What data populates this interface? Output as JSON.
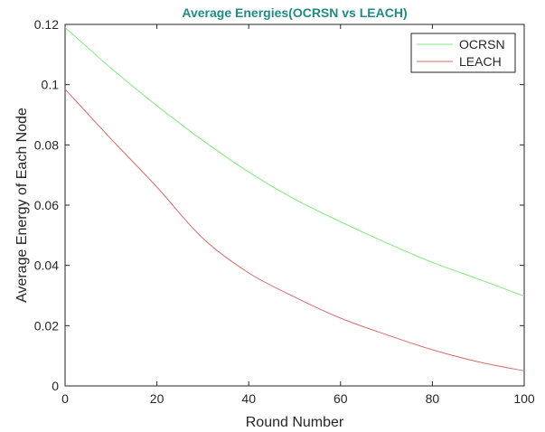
{
  "chart_data": {
    "type": "line",
    "title": "Average Energies(OCRSN vs LEACH)",
    "xlabel": "Round Number",
    "ylabel": "Average Energy of Each Node",
    "xlim": [
      0,
      100
    ],
    "ylim": [
      0,
      0.12
    ],
    "x_ticks": [
      "0",
      "20",
      "40",
      "60",
      "80",
      "100"
    ],
    "y_ticks": [
      "0",
      "0.02",
      "0.04",
      "0.06",
      "0.08",
      "0.1",
      "0.12"
    ],
    "grid": false,
    "legend_position": "top-right",
    "series": [
      {
        "name": "OCRSN",
        "color": "#7de87d",
        "x": [
          0,
          10,
          20,
          30,
          40,
          50,
          60,
          70,
          80,
          90,
          100
        ],
        "y": [
          0.119,
          0.1055,
          0.093,
          0.0815,
          0.071,
          0.062,
          0.0545,
          0.0475,
          0.041,
          0.0355,
          0.0298
        ]
      },
      {
        "name": "LEACH",
        "color": "#d96a6a",
        "x": [
          0,
          10,
          20,
          30,
          40,
          50,
          60,
          70,
          80,
          90,
          100
        ],
        "y": [
          0.0985,
          0.082,
          0.066,
          0.049,
          0.0375,
          0.0295,
          0.0225,
          0.017,
          0.012,
          0.008,
          0.005
        ]
      }
    ]
  }
}
